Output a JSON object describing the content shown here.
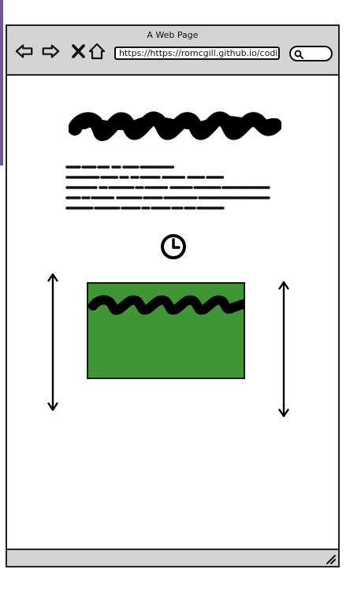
{
  "window": {
    "title": "A Web Page",
    "url": "https://https://romcgill.github.io/codin"
  },
  "toolbar": {
    "icons": [
      "back-arrow-icon",
      "forward-arrow-icon",
      "close-x-icon",
      "home-icon"
    ]
  },
  "colors": {
    "chrome": "#d4d4d4",
    "image_fill": "#409535",
    "ink": "#111111",
    "accent_strip": "#7a5296"
  }
}
